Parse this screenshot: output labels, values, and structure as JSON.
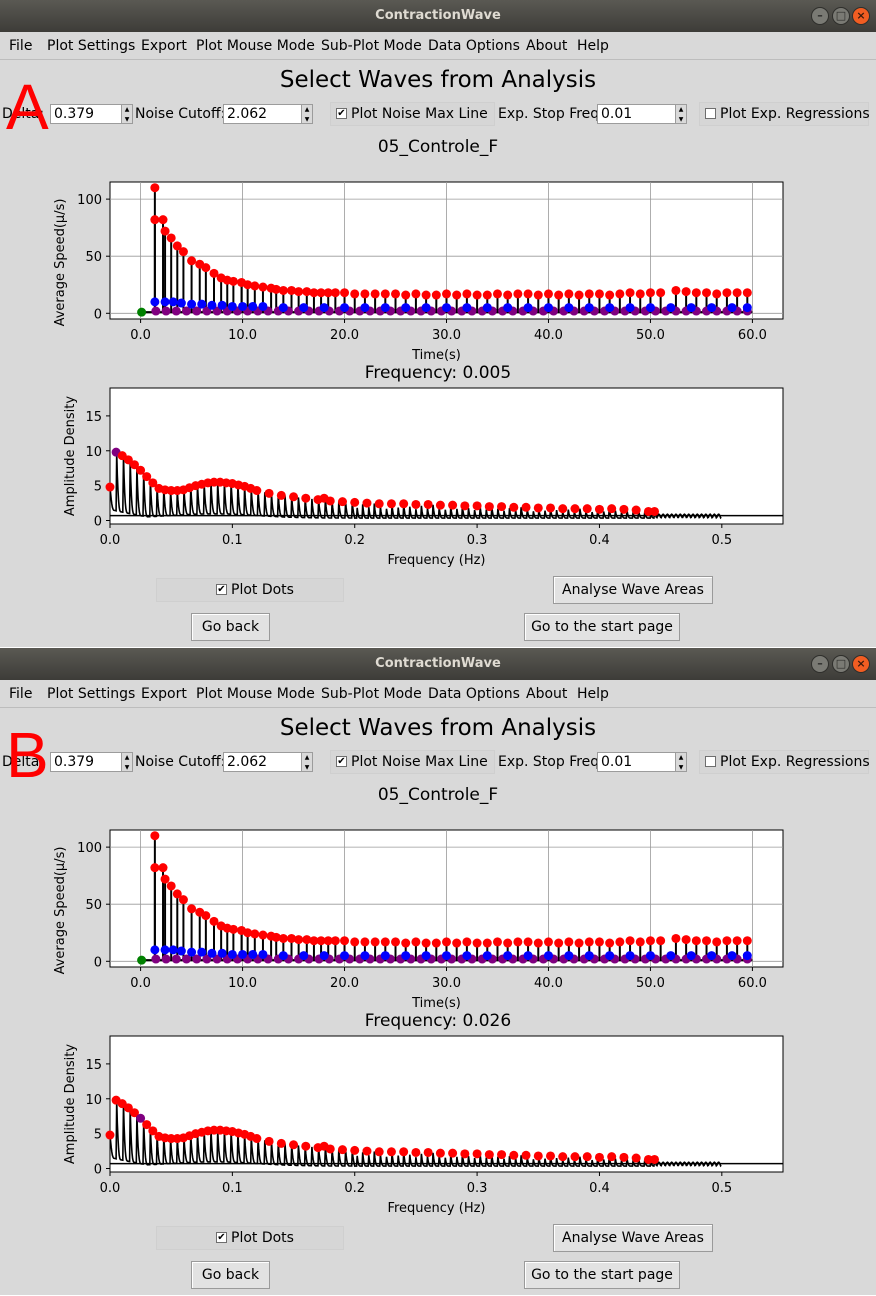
{
  "window_title": "ContractionWave",
  "window_buttons": [
    "–",
    "□",
    "×"
  ],
  "menu": [
    "File",
    "Plot Settings",
    "Export",
    "Plot Mouse Mode",
    "Sub-Plot Mode",
    "Data Options",
    "About",
    "Help"
  ],
  "heading": "Select Waves from Analysis",
  "controls": {
    "delta_label": "Delta:",
    "delta_value": "0.379",
    "noise_cutoff_label": "Noise Cutoff:",
    "noise_cutoff_value": "2.062",
    "plot_noise_max_line_label": "Plot Noise Max Line",
    "plot_noise_max_line_checked": true,
    "exp_stop_freq_label": "Exp. Stop Freq:",
    "exp_stop_freq_value": "0.01",
    "plot_exp_regressions_label": "Plot Exp. Regressions",
    "plot_exp_regressions_checked": false
  },
  "plot_title": "05_Controle_F",
  "plot_dots_label": "Plot Dots",
  "plot_dots_checked": true,
  "buttons": {
    "analyse": "Analyse Wave Areas",
    "go_back": "Go back",
    "start_page": "Go to the start page"
  },
  "panels": [
    {
      "letter": "A",
      "frequency_title": "Frequency: 0.005",
      "selected_freq": 0.005
    },
    {
      "letter": "B",
      "frequency_title": "Frequency: 0.026",
      "selected_freq": 0.026
    }
  ],
  "colors": {
    "red": "#ff0000",
    "blue": "#0000ff",
    "purple": "#800080",
    "green": "#008000",
    "titlebar": "#3d3c38"
  },
  "chart_data": [
    {
      "type": "scatter",
      "name": "time-plot",
      "xlabel": "Time(s)",
      "ylabel": "Average Speed(µ/s)",
      "xlim": [
        -3,
        63
      ],
      "ylim": [
        -5,
        115
      ],
      "xticks": [
        "0.0",
        "10.0",
        "20.0",
        "30.0",
        "40.0",
        "50.0",
        "60.0"
      ],
      "yticks": [
        "0",
        "50",
        "100"
      ],
      "grid": true,
      "series": [
        {
          "color": "red",
          "x": [
            1.4,
            1.4,
            2.2,
            2.4,
            3.0,
            3.6,
            4.2,
            5.0,
            5.8,
            6.4,
            7.2,
            7.9,
            8.5,
            9.1,
            9.9,
            10.5,
            11.2,
            12.0,
            12.8,
            13.3,
            14.0,
            14.8,
            15.5,
            16.3,
            17.0,
            17.7,
            18.4,
            19.1,
            20.0,
            21.0,
            22.0,
            23.0,
            24.0,
            25.0,
            26.0,
            27.0,
            28.0,
            29.0,
            30.0,
            31.0,
            32.0,
            33.0,
            34.0,
            35.0,
            36.0,
            37.0,
            38.0,
            39.0,
            40.0,
            41.0,
            42.0,
            43.0,
            44.0,
            45.0,
            46.0,
            47.0,
            48.0,
            49.0,
            50.0,
            51.0,
            52.5,
            53.5,
            54.5,
            55.5,
            56.5,
            57.5,
            58.5,
            59.5
          ],
          "y": [
            110,
            82,
            82,
            72,
            66,
            59,
            54,
            46,
            43,
            40,
            35,
            31,
            29,
            28,
            27,
            25,
            24,
            23,
            22,
            21,
            20,
            20,
            19,
            19,
            18,
            18,
            18,
            18,
            18,
            17,
            17,
            17,
            17,
            17,
            16,
            17,
            16,
            16,
            17,
            16,
            17,
            16,
            16,
            17,
            16,
            17,
            17,
            16,
            17,
            16,
            17,
            16,
            17,
            17,
            16,
            17,
            18,
            17,
            18,
            18,
            20,
            19,
            18,
            18,
            17,
            18,
            18,
            18
          ]
        },
        {
          "color": "blue",
          "x": [
            1.4,
            2.4,
            3.2,
            4.0,
            5.0,
            6.0,
            7.0,
            8.0,
            9.0,
            10.0,
            11.0,
            12.0,
            14.0,
            16.0,
            18.0,
            20.0,
            22.0,
            24.0,
            26.0,
            28.0,
            30.0,
            32.0,
            34.0,
            36.0,
            38.0,
            40.0,
            42.0,
            44.0,
            46.0,
            48.0,
            50.0,
            52.0,
            54.0,
            56.0,
            58.0,
            59.5
          ],
          "y": [
            10,
            10,
            10,
            9,
            8,
            8,
            7,
            7,
            6,
            6,
            6,
            6,
            5,
            5,
            5,
            5,
            5,
            5,
            5,
            5,
            5,
            5,
            5,
            5,
            5,
            5,
            5,
            5,
            5,
            5,
            5,
            5,
            5,
            5,
            5,
            5
          ]
        },
        {
          "color": "green",
          "x": [
            0.1
          ],
          "y": [
            1
          ]
        }
      ]
    },
    {
      "type": "line",
      "name": "frequency-plot",
      "xlabel": "Frequency (Hz)",
      "ylabel": "Amplitude Density",
      "xlim": [
        0,
        0.55
      ],
      "ylim": [
        -0.5,
        19
      ],
      "xticks": [
        "0.0",
        "0.1",
        "0.2",
        "0.3",
        "0.4",
        "0.5"
      ],
      "yticks": [
        "0",
        "5",
        "10",
        "15"
      ],
      "grid": false,
      "noise_max_line": 0.7,
      "peaks_x": [
        0.0,
        0.005,
        0.01,
        0.015,
        0.02,
        0.025,
        0.03,
        0.035,
        0.04,
        0.045,
        0.05,
        0.055,
        0.06,
        0.065,
        0.07,
        0.075,
        0.08,
        0.085,
        0.09,
        0.095,
        0.1,
        0.105,
        0.11,
        0.115,
        0.12,
        0.13,
        0.14,
        0.15,
        0.16,
        0.17,
        0.175,
        0.18,
        0.19,
        0.2,
        0.21,
        0.22,
        0.23,
        0.24,
        0.25,
        0.26,
        0.27,
        0.28,
        0.29,
        0.3,
        0.31,
        0.32,
        0.33,
        0.34,
        0.35,
        0.36,
        0.37,
        0.38,
        0.39,
        0.4,
        0.41,
        0.42,
        0.43,
        0.44,
        0.445
      ],
      "peaks_y": [
        4.8,
        9.8,
        9.3,
        8.7,
        8.0,
        7.2,
        6.3,
        5.4,
        4.6,
        4.4,
        4.3,
        4.3,
        4.4,
        4.7,
        5.0,
        5.2,
        5.4,
        5.5,
        5.5,
        5.4,
        5.3,
        5.1,
        4.9,
        4.6,
        4.3,
        3.9,
        3.6,
        3.4,
        3.2,
        3.0,
        3.2,
        2.8,
        2.7,
        2.6,
        2.5,
        2.4,
        2.4,
        2.4,
        2.3,
        2.3,
        2.2,
        2.2,
        2.1,
        2.1,
        2.0,
        2.0,
        1.9,
        1.9,
        1.8,
        1.8,
        1.7,
        1.7,
        1.7,
        1.6,
        1.7,
        1.6,
        1.5,
        1.3,
        1.3
      ]
    }
  ]
}
